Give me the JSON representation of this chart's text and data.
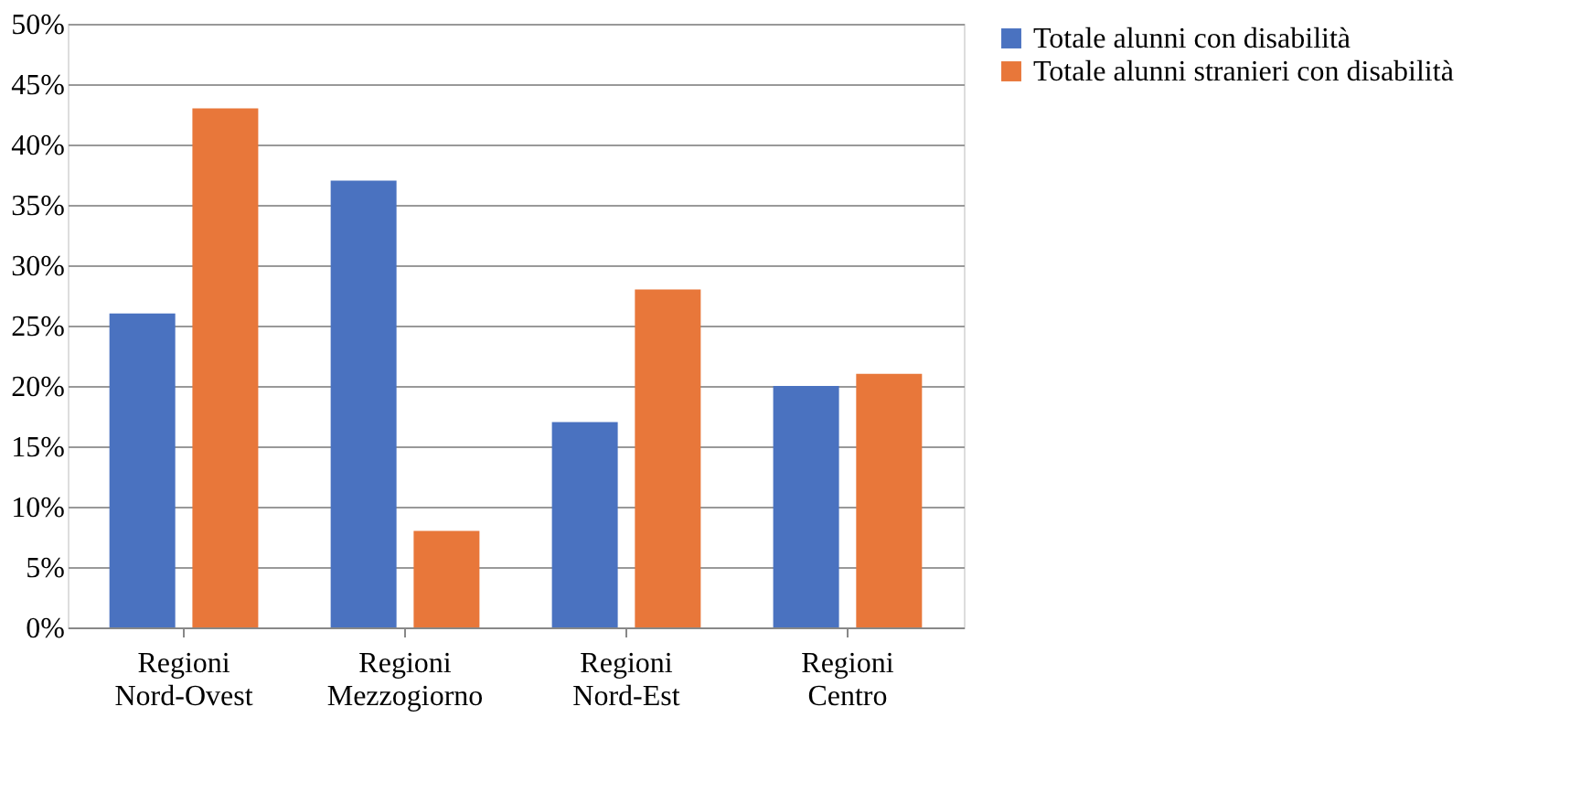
{
  "chart_data": {
    "type": "bar",
    "categories": [
      "Regioni Nord-Ovest",
      "Regioni Mezzogiorno",
      "Regioni Nord-Est",
      "Regioni Centro"
    ],
    "series": [
      {
        "name": "Totale alunni con disabilità",
        "color": "#4a72c0",
        "values": [
          26,
          37,
          17,
          20
        ]
      },
      {
        "name": "Totale alunni stranieri con disabilità",
        "color": "#e8773a",
        "values": [
          43,
          8,
          28,
          21
        ]
      }
    ],
    "ylim": [
      0,
      50
    ],
    "yticks": [
      {
        "value": 0,
        "label": "0%"
      },
      {
        "value": 5,
        "label": "5%"
      },
      {
        "value": 10,
        "label": "10%"
      },
      {
        "value": 15,
        "label": "15%"
      },
      {
        "value": 20,
        "label": "20%"
      },
      {
        "value": 25,
        "label": "25%"
      },
      {
        "value": 30,
        "label": "30%"
      },
      {
        "value": 35,
        "label": "35%"
      },
      {
        "value": 40,
        "label": "40%"
      },
      {
        "value": 45,
        "label": "45%"
      },
      {
        "value": 50,
        "label": "50%"
      }
    ],
    "grid": "y",
    "legend": "right"
  }
}
